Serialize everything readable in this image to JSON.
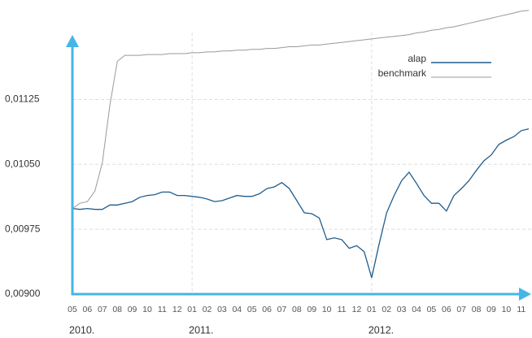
{
  "chart_data": {
    "type": "line",
    "categories": [
      "05",
      null,
      "06",
      null,
      "07",
      null,
      "08",
      null,
      "09",
      null,
      "10",
      null,
      "11",
      null,
      "12",
      null,
      "01",
      null,
      "02",
      null,
      "03",
      null,
      "04",
      null,
      "05",
      null,
      "06",
      null,
      "07",
      null,
      "08",
      null,
      "09",
      null,
      "10",
      null,
      "11",
      null,
      "12",
      null,
      "01",
      null,
      "02",
      null,
      "03",
      null,
      "04",
      null,
      "05",
      null,
      "06",
      null,
      "07",
      null,
      "08",
      null,
      "09",
      null,
      "10",
      null,
      "11",
      null
    ],
    "year_labels": [
      "2010.",
      "2011.",
      "2012."
    ],
    "series": [
      {
        "name": "alap",
        "color": "#1f5d8f",
        "values": [
          0.00999,
          0.00998,
          0.00999,
          0.00998,
          0.00998,
          0.01003,
          0.01003,
          0.01005,
          0.01007,
          0.01012,
          0.01014,
          0.01015,
          0.01018,
          0.01018,
          0.01014,
          0.01014,
          0.01013,
          0.01012,
          0.0101,
          0.01007,
          0.01008,
          0.01011,
          0.01014,
          0.01013,
          0.01013,
          0.01016,
          0.01022,
          0.01024,
          0.01029,
          0.01022,
          0.01008,
          0.00994,
          0.00993,
          0.00988,
          0.00963,
          0.00965,
          0.00963,
          0.00953,
          0.00956,
          0.00949,
          0.00919,
          0.00958,
          0.00994,
          0.01014,
          0.01031,
          0.01041,
          0.01028,
          0.01014,
          0.01005,
          0.01005,
          0.00996,
          0.01014,
          0.01022,
          0.01031,
          0.01043,
          0.01054,
          0.01061,
          0.01073,
          0.01078,
          0.01082,
          0.01089,
          0.01091
        ]
      },
      {
        "name": "benchmark",
        "color": "#999999",
        "values": [
          0.00999,
          0.01005,
          0.01007,
          0.01019,
          0.01052,
          0.01118,
          0.01169,
          0.01176,
          0.01176,
          0.01176,
          0.01177,
          0.01177,
          0.01177,
          0.01178,
          0.01178,
          0.01178,
          0.01179,
          0.01179,
          0.0118,
          0.0118,
          0.01181,
          0.01181,
          0.01182,
          0.01182,
          0.01183,
          0.01183,
          0.01184,
          0.01184,
          0.01185,
          0.01186,
          0.01186,
          0.01187,
          0.01188,
          0.01188,
          0.01189,
          0.0119,
          0.01191,
          0.01192,
          0.01193,
          0.01194,
          0.01195,
          0.01196,
          0.01197,
          0.01198,
          0.01199,
          0.012,
          0.01202,
          0.01203,
          0.01205,
          0.01206,
          0.01208,
          0.01209,
          0.01211,
          0.01213,
          0.01215,
          0.01217,
          0.01219,
          0.01221,
          0.01223,
          0.01225,
          0.01227,
          0.01228
        ]
      }
    ],
    "ylim": [
      0.009,
      0.0124
    ],
    "yticks": [
      {
        "value": 0.009,
        "label": "0,00900"
      },
      {
        "value": 0.00975,
        "label": "0,00975"
      },
      {
        "value": 0.0105,
        "label": "0,01050"
      },
      {
        "value": 0.01125,
        "label": "0,01125"
      }
    ],
    "grid": true,
    "legend": "top-right"
  }
}
